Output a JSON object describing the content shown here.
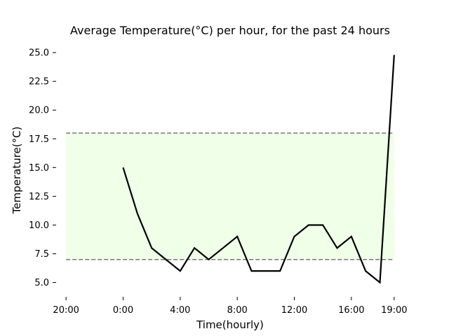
{
  "chart_data": {
    "type": "line",
    "title": "Average Temperature(°C) per hour, for the past 24 hours",
    "xlabel": "Time(hourly)",
    "ylabel": "Temperature(°C)",
    "x": [
      0,
      1,
      2,
      3,
      4,
      5,
      6,
      7,
      8,
      9,
      10,
      11,
      12,
      13,
      14,
      15,
      16,
      17,
      18,
      19
    ],
    "x_tick_labels": [
      {
        "x": -4,
        "label": "20:00"
      },
      {
        "x": 0,
        "label": "0:00"
      },
      {
        "x": 4,
        "label": "4:00"
      },
      {
        "x": 8,
        "label": "8:00"
      },
      {
        "x": 12,
        "label": "12:00"
      },
      {
        "x": 16,
        "label": "16:00"
      },
      {
        "x": 19,
        "label": "19:00"
      }
    ],
    "series": [
      {
        "values": [
          15.0,
          11.0,
          8.0,
          7.0,
          6.0,
          8.0,
          7.0,
          8.0,
          9.0,
          6.0,
          6.0,
          6.0,
          9.0,
          10.0,
          10.0,
          8.0,
          9.0,
          6.0,
          5.0,
          24.8
        ],
        "color": "#000000"
      }
    ],
    "band": {
      "ymin": 7.0,
      "ymax": 18.0,
      "color": "#efffe8",
      "line_color": "#777777",
      "x_start": -4,
      "x_end": 19
    },
    "xlim": [
      -4.5,
      19.5
    ],
    "ylim": [
      4.0,
      25.8
    ],
    "yticks": [
      5.0,
      7.5,
      10.0,
      12.5,
      15.0,
      17.5,
      20.0,
      22.5,
      25.0
    ],
    "ytick_labels": [
      "5.0",
      "7.5",
      "10.0",
      "12.5",
      "15.0",
      "17.5",
      "20.0",
      "22.5",
      "25.0"
    ],
    "grid": false,
    "legend": "none"
  }
}
